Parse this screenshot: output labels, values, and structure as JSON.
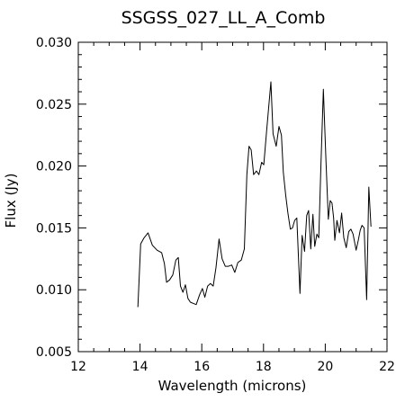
{
  "chart_data": {
    "type": "line",
    "title": "SSGSS_027_LL_A_Comb",
    "xlabel": "Wavelength (microns)",
    "ylabel": "Flux (Jy)",
    "xlim": [
      12,
      22
    ],
    "ylim": [
      0.005,
      0.03
    ],
    "x_ticks": [
      12,
      14,
      16,
      18,
      20,
      22
    ],
    "x_tick_labels": [
      "12",
      "14",
      "16",
      "18",
      "20",
      "22"
    ],
    "y_ticks": [
      0.005,
      0.01,
      0.015,
      0.02,
      0.025,
      0.03
    ],
    "y_tick_labels": [
      "0.005",
      "0.010",
      "0.015",
      "0.020",
      "0.025",
      "0.030"
    ],
    "grid": false,
    "legend": "none",
    "series": [
      {
        "color": "#000000",
        "x": [
          13.93,
          14.02,
          14.13,
          14.26,
          14.4,
          14.55,
          14.7,
          14.79,
          14.86,
          14.96,
          15.06,
          15.16,
          15.24,
          15.31,
          15.39,
          15.47,
          15.55,
          15.63,
          15.72,
          15.82,
          15.93,
          16.02,
          16.1,
          16.19,
          16.28,
          16.37,
          16.46,
          16.56,
          16.66,
          16.76,
          16.86,
          16.97,
          17.07,
          17.17,
          17.28,
          17.38,
          17.46,
          17.53,
          17.6,
          17.68,
          17.77,
          17.85,
          17.94,
          18.01,
          18.1,
          18.17,
          18.24,
          18.31,
          18.41,
          18.5,
          18.58,
          18.64,
          18.72,
          18.79,
          18.87,
          18.94,
          19.01,
          19.08,
          19.18,
          19.25,
          19.33,
          19.4,
          19.46,
          19.53,
          19.6,
          19.66,
          19.73,
          19.79,
          19.86,
          19.94,
          20.02,
          20.1,
          20.16,
          20.22,
          20.27,
          20.31,
          20.38,
          20.46,
          20.53,
          20.6,
          20.68,
          20.76,
          20.83,
          20.9,
          21.0,
          21.07,
          21.13,
          21.19,
          21.26,
          21.34,
          21.41,
          21.48
        ],
        "y": [
          0.0086,
          0.0137,
          0.0142,
          0.0146,
          0.0136,
          0.0132,
          0.013,
          0.0121,
          0.0106,
          0.0108,
          0.0112,
          0.0124,
          0.0126,
          0.0103,
          0.0098,
          0.0104,
          0.0093,
          0.009,
          0.0089,
          0.0088,
          0.0096,
          0.0101,
          0.0094,
          0.0103,
          0.0105,
          0.0103,
          0.0118,
          0.0141,
          0.0125,
          0.0119,
          0.0119,
          0.012,
          0.0114,
          0.0122,
          0.0124,
          0.0133,
          0.0193,
          0.0216,
          0.0213,
          0.0193,
          0.0196,
          0.0193,
          0.0203,
          0.0201,
          0.0228,
          0.0248,
          0.0268,
          0.0226,
          0.0216,
          0.0232,
          0.0225,
          0.0195,
          0.0176,
          0.0162,
          0.0149,
          0.015,
          0.0156,
          0.0158,
          0.0097,
          0.0144,
          0.0131,
          0.016,
          0.0164,
          0.0133,
          0.0161,
          0.0135,
          0.0145,
          0.0142,
          0.0201,
          0.0262,
          0.0206,
          0.0157,
          0.0172,
          0.017,
          0.0158,
          0.014,
          0.0156,
          0.0146,
          0.0162,
          0.0142,
          0.0134,
          0.0147,
          0.0149,
          0.0145,
          0.0132,
          0.014,
          0.0148,
          0.0152,
          0.015,
          0.0092,
          0.0183,
          0.0151
        ]
      }
    ]
  }
}
